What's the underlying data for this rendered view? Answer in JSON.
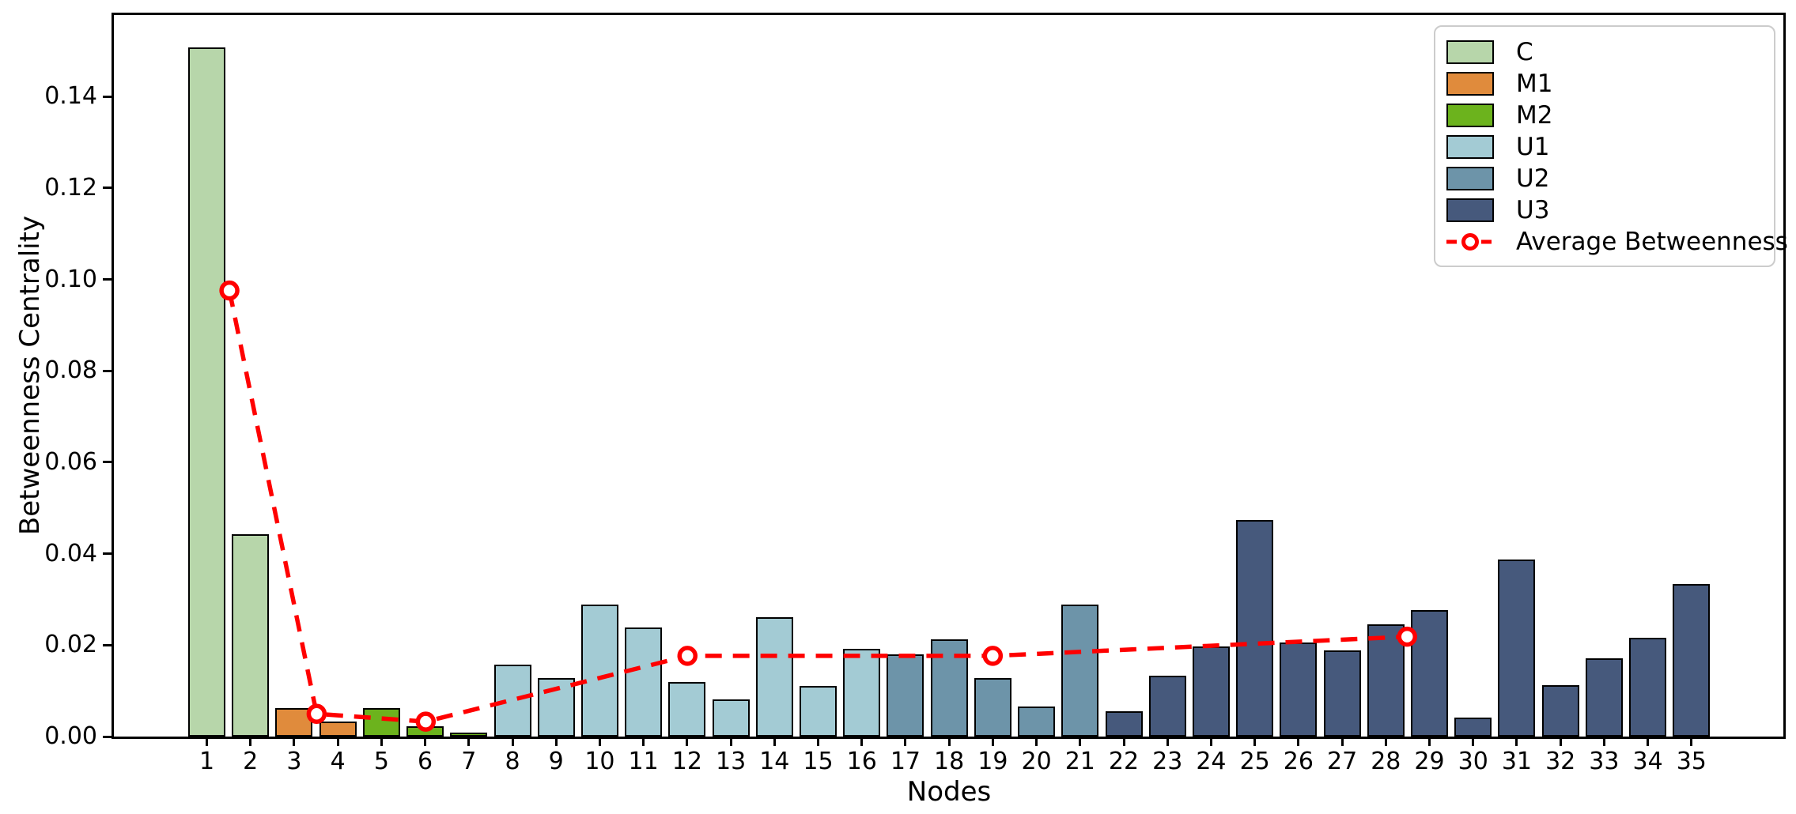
{
  "chart_data": {
    "type": "bar",
    "title": "",
    "xlabel": "Nodes",
    "ylabel": "Betweenness Centrality",
    "ylim": [
      0,
      0.158
    ],
    "grid": false,
    "background": "#ffffff",
    "bar_edge_color": "#000000",
    "ytick_values": [
      0.0,
      0.02,
      0.04,
      0.06,
      0.08,
      0.1,
      0.12,
      0.14
    ],
    "ytick_labels": [
      "0.00",
      "0.02",
      "0.04",
      "0.06",
      "0.08",
      "0.10",
      "0.12",
      "0.14"
    ],
    "categories": [
      "1",
      "2",
      "3",
      "4",
      "5",
      "6",
      "7",
      "8",
      "9",
      "10",
      "11",
      "12",
      "13",
      "14",
      "15",
      "16",
      "17",
      "18",
      "19",
      "20",
      "21",
      "22",
      "23",
      "24",
      "25",
      "26",
      "27",
      "28",
      "29",
      "30",
      "31",
      "32",
      "33",
      "34",
      "35"
    ],
    "values": [
      0.1507,
      0.0443,
      0.0063,
      0.0033,
      0.0063,
      0.0022,
      0.0008,
      0.0158,
      0.0128,
      0.0288,
      0.0239,
      0.012,
      0.0081,
      0.0261,
      0.011,
      0.0192,
      0.018,
      0.0212,
      0.0128,
      0.0066,
      0.0288,
      0.0055,
      0.0133,
      0.0197,
      0.0474,
      0.0205,
      0.0189,
      0.0245,
      0.0276,
      0.0042,
      0.0388,
      0.0113,
      0.0172,
      0.0216,
      0.0334
    ],
    "bar_groups": [
      "C",
      "C",
      "M1",
      "M1",
      "M2",
      "M2",
      "M2",
      "U1",
      "U1",
      "U1",
      "U1",
      "U1",
      "U1",
      "U1",
      "U1",
      "U1",
      "U2",
      "U2",
      "U2",
      "U2",
      "U2",
      "U3",
      "U3",
      "U3",
      "U3",
      "U3",
      "U3",
      "U3",
      "U3",
      "U3",
      "U3",
      "U3",
      "U3",
      "U3",
      "U3"
    ],
    "group_colors": {
      "C": "#b7d6aa",
      "M1": "#e08b3c",
      "M2": "#6cb31d",
      "U1": "#a3cbd4",
      "U2": "#6d94a9",
      "U3": "#46597c"
    },
    "legend": {
      "position": "upper right",
      "entries": [
        {
          "label": "C",
          "color": "#b7d6aa",
          "type": "patch"
        },
        {
          "label": "M1",
          "color": "#e08b3c",
          "type": "patch"
        },
        {
          "label": "M2",
          "color": "#6cb31d",
          "type": "patch"
        },
        {
          "label": "U1",
          "color": "#a3cbd4",
          "type": "patch"
        },
        {
          "label": "U2",
          "color": "#6d94a9",
          "type": "patch"
        },
        {
          "label": "U3",
          "color": "#46597c",
          "type": "patch"
        },
        {
          "label": "Average Betweenness",
          "color": "#ff0000",
          "type": "line-marker"
        }
      ]
    },
    "average_line": {
      "label": "Average Betweenness",
      "color": "#ff0000",
      "linestyle": "dashed",
      "marker": "circle-open",
      "marker_face": "#ffffff",
      "points": [
        {
          "x": 1.5,
          "y": 0.0975
        },
        {
          "x": 3.5,
          "y": 0.0048
        },
        {
          "x": 6.0,
          "y": 0.0031
        },
        {
          "x": 12.0,
          "y": 0.0175
        },
        {
          "x": 19.0,
          "y": 0.0175
        },
        {
          "x": 28.5,
          "y": 0.0217
        }
      ]
    }
  }
}
